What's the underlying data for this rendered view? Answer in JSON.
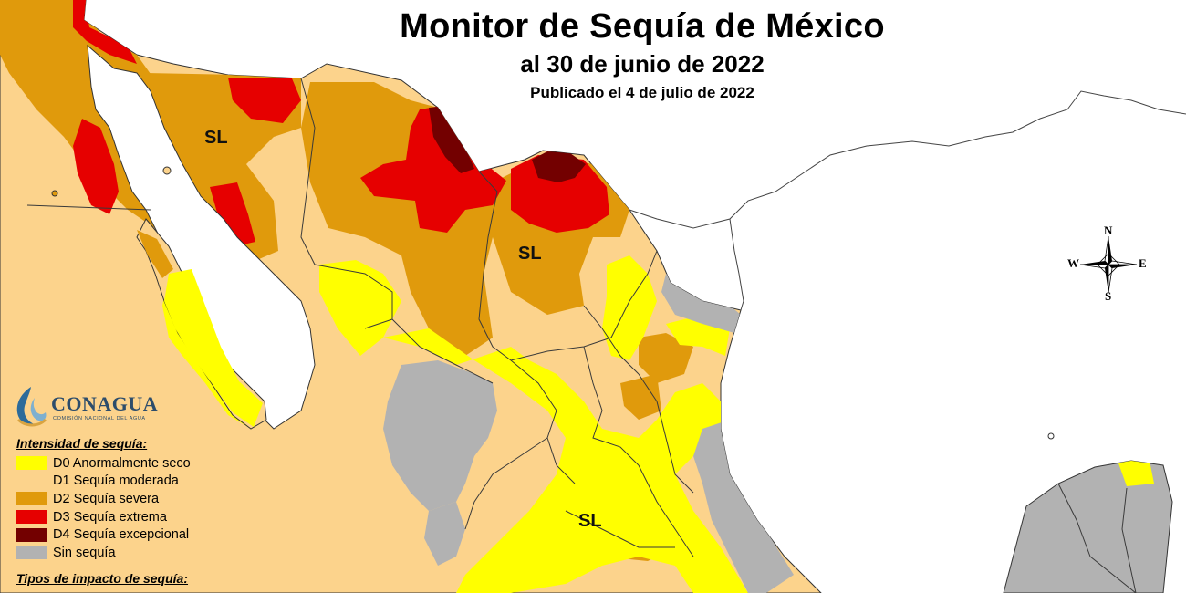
{
  "title": "Monitor de Sequía de México",
  "date": "al 30 de junio de 2022",
  "published": "Publicado el 4 de julio de 2022",
  "map_labels": [
    "SL",
    "SL",
    "SL"
  ],
  "compass": {
    "north": "N",
    "south": "S",
    "west": "W",
    "east": "E"
  },
  "logo": {
    "name": "CONAGUA",
    "subtitle": "COMISIÓN NACIONAL DEL AGUA"
  },
  "legend": {
    "heading": "Intensidad de sequía:",
    "items": [
      {
        "label": "D0 Anormalmente seco",
        "color": "#ffff00"
      },
      {
        "label": "D1 Sequía moderada",
        "color": "#fcd38c"
      },
      {
        "label": "D2 Sequía severa",
        "color": "#e09a0c"
      },
      {
        "label": "D3 Sequía extrema",
        "color": "#e60000"
      },
      {
        "label": "D4 Sequía excepcional",
        "color": "#730000"
      },
      {
        "label": "Sin sequía",
        "color": "#b2b2b2"
      }
    ],
    "impact_heading": "Tipos de impacto de sequía:"
  },
  "colors": {
    "d0": "#ffff00",
    "d1": "#fcd38c",
    "d2": "#e09a0c",
    "d3": "#e60000",
    "d4": "#730000",
    "none": "#b2b2b2",
    "border": "#3a3a3a",
    "water": "#ffffff"
  }
}
